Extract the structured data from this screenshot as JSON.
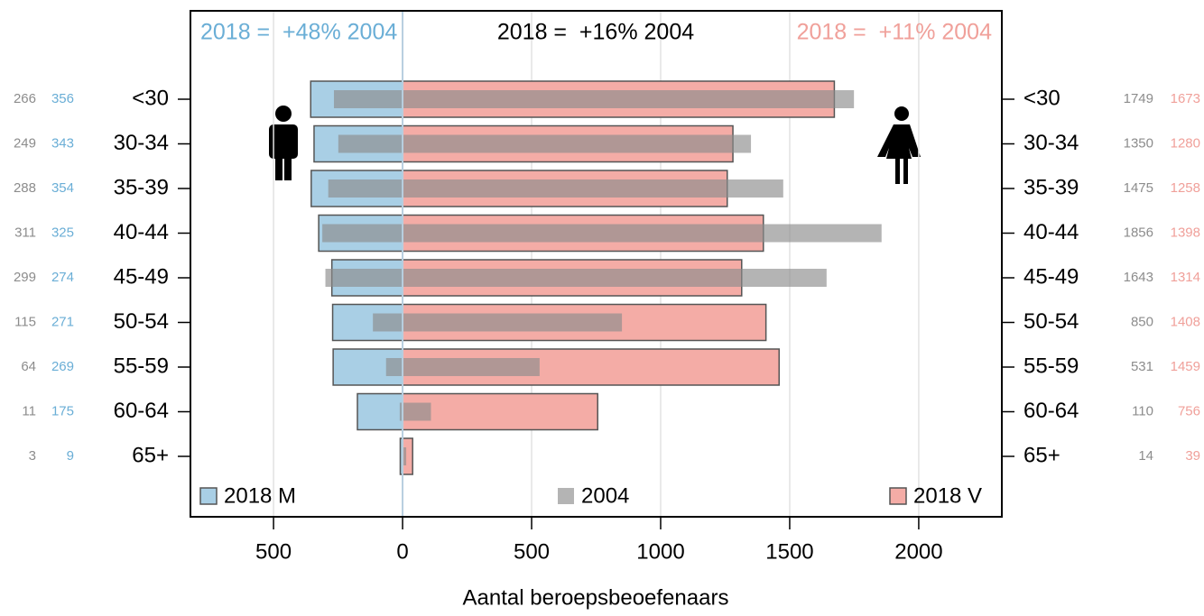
{
  "chart_data": {
    "type": "pyramid",
    "annotations": [
      {
        "text": "2018 =  +48% 2004",
        "color": "#6aaed6"
      },
      {
        "text": "2018 =  +16% 2004",
        "color": "#000000"
      },
      {
        "text": "2018 =  +11% 2004",
        "color": "#f0a09a"
      }
    ],
    "categories": [
      "<30",
      "30-34",
      "35-39",
      "40-44",
      "45-49",
      "50-54",
      "55-59",
      "60-64",
      "65+"
    ],
    "series": [
      {
        "name": "2018 M",
        "color": "#a9cfe5",
        "values": [
          356,
          343,
          354,
          325,
          274,
          271,
          269,
          175,
          9
        ]
      },
      {
        "name": "2004",
        "color": "#8c8c8c",
        "values_m": [
          266,
          249,
          288,
          311,
          299,
          115,
          64,
          11,
          3
        ],
        "values_v": [
          1749,
          1350,
          1475,
          1856,
          1643,
          850,
          531,
          110,
          14
        ]
      },
      {
        "name": "2018 V",
        "color": "#f4aca6",
        "values": [
          1673,
          1280,
          1258,
          1398,
          1314,
          1408,
          1459,
          756,
          39
        ]
      }
    ],
    "xlabel": "Aantal beroepsbeoefenaars",
    "xlim": [
      -822,
      2322
    ],
    "xticks": [
      {
        "value": -500,
        "label": "500"
      },
      0,
      500,
      1000,
      1500,
      2000
    ],
    "grid": true
  }
}
